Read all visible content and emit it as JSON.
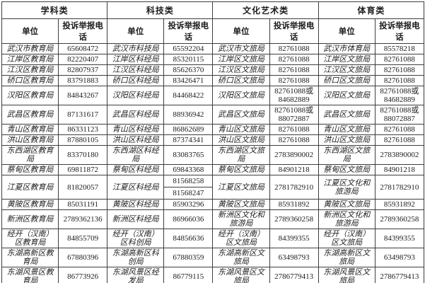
{
  "table": {
    "border_color": "#3d3d3d",
    "text_color": "#1c1c1c",
    "background_color": "#ffffff",
    "groups": [
      "学科类",
      "科技类",
      "文化艺术类",
      "体育类"
    ],
    "subheaders": {
      "unit": "单位",
      "phone": "投诉举报电话"
    },
    "rows": [
      [
        {
          "unit": "武汉市教育局",
          "phones": [
            "65608472"
          ]
        },
        {
          "unit": "武汉市科技局",
          "phones": [
            "65592204"
          ]
        },
        {
          "unit": "武汉市文旅局",
          "phones": [
            "82761088"
          ]
        },
        {
          "unit": "武汉市体育局",
          "phones": [
            "85578218"
          ]
        }
      ],
      [
        {
          "unit": "江岸区教育局",
          "phones": [
            "82220407"
          ]
        },
        {
          "unit": "江岸区科经局",
          "phones": [
            "85320115"
          ]
        },
        {
          "unit": "江岸区文旅局",
          "phones": [
            "82761088"
          ]
        },
        {
          "unit": "江岸区文旅局",
          "phones": [
            "82761088"
          ]
        }
      ],
      [
        {
          "unit": "江汉区教育局",
          "phones": [
            "82807937"
          ]
        },
        {
          "unit": "江汉区科经局",
          "phones": [
            "85626370"
          ]
        },
        {
          "unit": "江汉区文旅局",
          "phones": [
            "82761088"
          ]
        },
        {
          "unit": "江汉区文旅局",
          "phones": [
            "82761088"
          ]
        }
      ],
      [
        {
          "unit": "硚口区教育局",
          "phones": [
            "83791883"
          ]
        },
        {
          "unit": "硚口区科经局",
          "phones": [
            "83426471"
          ]
        },
        {
          "unit": "硚口区文旅局",
          "phones": [
            "82761088"
          ]
        },
        {
          "unit": "硚口区文旅局",
          "phones": [
            "82761088"
          ]
        }
      ],
      [
        {
          "unit": "汉阳区教育局",
          "phones": [
            "84843267"
          ]
        },
        {
          "unit": "汉阳区科经局",
          "phones": [
            "84468422"
          ]
        },
        {
          "unit": "汉阳区文旅局",
          "phones": [
            "82761088或",
            "84682889"
          ]
        },
        {
          "unit": "汉阳区文旅局",
          "phones": [
            "82761088或",
            "84682889"
          ]
        }
      ],
      [
        {
          "unit": "武昌区教育局",
          "phones": [
            "87131617"
          ]
        },
        {
          "unit": "武昌区科经局",
          "phones": [
            "88936942"
          ]
        },
        {
          "unit": "武昌区文旅局",
          "phones": [
            "82761088或",
            "88072887"
          ]
        },
        {
          "unit": "武昌区文旅局",
          "phones": [
            "82761088或",
            "88072887"
          ]
        }
      ],
      [
        {
          "unit": "青山区教育局",
          "phones": [
            "86331123"
          ]
        },
        {
          "unit": "青山区科经局",
          "phones": [
            "86862689"
          ]
        },
        {
          "unit": "青山区文旅局",
          "phones": [
            "82761088"
          ]
        },
        {
          "unit": "青山区文旅局",
          "phones": [
            "82761088"
          ]
        }
      ],
      [
        {
          "unit": "洪山区教育局",
          "phones": [
            "87880105"
          ]
        },
        {
          "unit": "洪山区科经局",
          "phones": [
            "87374341"
          ]
        },
        {
          "unit": "洪山区文旅局",
          "phones": [
            "82761088"
          ]
        },
        {
          "unit": "洪山区文旅局",
          "phones": [
            "82761088"
          ]
        }
      ],
      [
        {
          "unit": "东西湖区教育局",
          "phones": [
            "83370180"
          ]
        },
        {
          "unit": "东西湖区科经局",
          "phones": [
            "83083765"
          ]
        },
        {
          "unit": "东西湖区文旅局",
          "phones": [
            "2783890002"
          ]
        },
        {
          "unit": "东西湖区文旅局",
          "phones": [
            "2783890002"
          ]
        }
      ],
      [
        {
          "unit": "蔡甸区教育局",
          "phones": [
            "69811872"
          ]
        },
        {
          "unit": "蔡甸区科经局",
          "phones": [
            "69843368"
          ]
        },
        {
          "unit": "蔡甸区文旅局",
          "phones": [
            "84901218"
          ]
        },
        {
          "unit": "蔡甸区文旅局",
          "phones": [
            "84901218"
          ]
        }
      ],
      [
        {
          "unit": "江夏区教育局",
          "phones": [
            "81820057"
          ]
        },
        {
          "unit": "江夏区科经局",
          "phones": [
            "81568258",
            "81568247"
          ],
          "split": true
        },
        {
          "unit": "江夏区文旅局",
          "phones": [
            "2781782910"
          ]
        },
        {
          "unit": "江夏区文化和旅游局",
          "phones": [
            "2781782910"
          ]
        }
      ],
      [
        {
          "unit": "黄陂区教育局",
          "phones": [
            "85031191"
          ]
        },
        {
          "unit": "黄陂区科经局",
          "phones": [
            "85903296"
          ]
        },
        {
          "unit": "黄陂区文旅局",
          "phones": [
            "85931892"
          ]
        },
        {
          "unit": "黄陂区文旅局",
          "phones": [
            "85931892"
          ]
        }
      ],
      [
        {
          "unit": "新洲区教育局",
          "phones": [
            "2789362136"
          ]
        },
        {
          "unit": "新洲区科经局",
          "phones": [
            "86966036"
          ]
        },
        {
          "unit": "新洲区文化和旅游局",
          "phones": [
            "2789360258"
          ]
        },
        {
          "unit": "新洲区文化和旅游局",
          "phones": [
            "2789360258"
          ]
        }
      ],
      [
        {
          "unit": "经开（汉南）区教育局",
          "phones": [
            "84855709"
          ]
        },
        {
          "unit": "经开（汉南）区科创局",
          "phones": [
            "84856636"
          ]
        },
        {
          "unit": "经开（汉南）区文旅局",
          "phones": [
            "84399355"
          ]
        },
        {
          "unit": "经开（汉南）区文旅局",
          "phones": [
            "84399355"
          ]
        }
      ],
      [
        {
          "unit": "东湖高新区教育局",
          "phones": [
            "67880396"
          ]
        },
        {
          "unit": "东湖高新区科创局",
          "phones": [
            "67880359"
          ]
        },
        {
          "unit": "东湖高新区文旅局",
          "phones": [
            "63498793"
          ]
        },
        {
          "unit": "东湖高新区文旅局",
          "phones": [
            "63498793"
          ]
        }
      ],
      [
        {
          "unit": "东湖风景区教育局",
          "phones": [
            "86773926"
          ]
        },
        {
          "unit": "东湖风景区经发局",
          "phones": [
            "86779115"
          ]
        },
        {
          "unit": "东湖风景区文旅局",
          "phones": [
            "2786779413"
          ]
        },
        {
          "unit": "东湖风景区文旅局",
          "phones": [
            "2786779413"
          ]
        }
      ]
    ]
  }
}
